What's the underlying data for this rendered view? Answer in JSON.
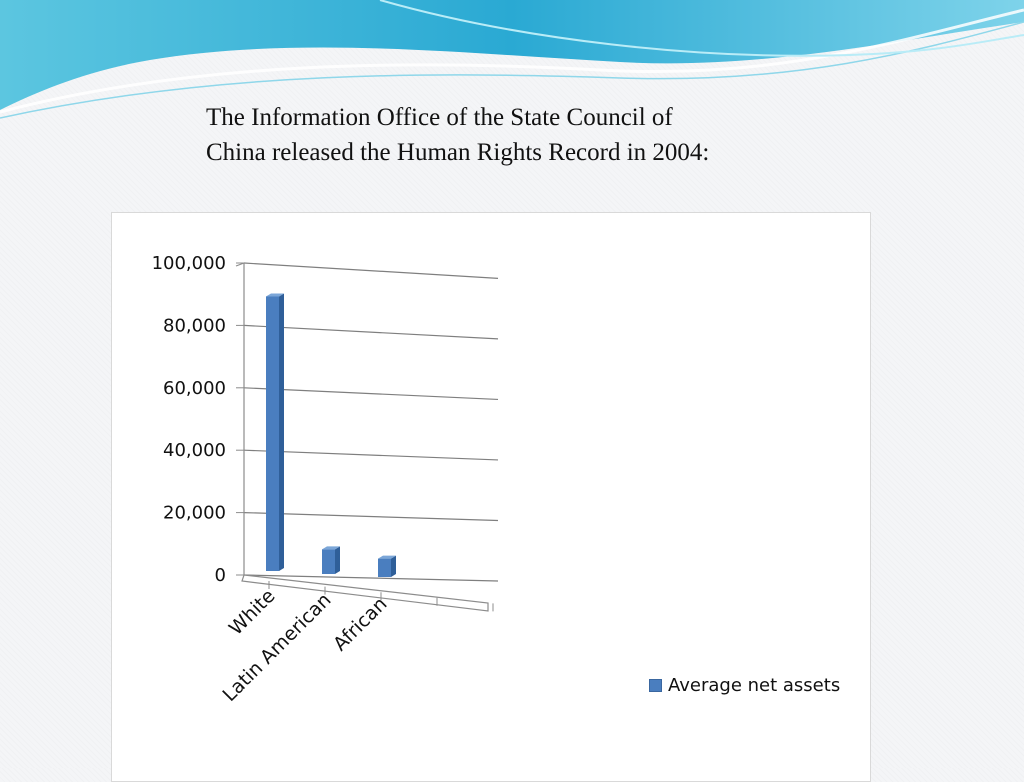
{
  "slide": {
    "title_line1": "The Information Office of the State Council of",
    "title_line2": "China released the Human Rights Record in 2004:"
  },
  "chart_data": {
    "type": "bar",
    "categories": [
      "White",
      "Latin American",
      "African"
    ],
    "series": [
      {
        "name": "Average net assets",
        "values": [
          88000,
          7900,
          5900
        ],
        "color": "#4a7ebf"
      }
    ],
    "ylim": [
      0,
      100000
    ],
    "yticks": [
      "0",
      "20,000",
      "40,000",
      "60,000",
      "80,000",
      "100,000"
    ],
    "grid": true,
    "legend_position": "right"
  }
}
